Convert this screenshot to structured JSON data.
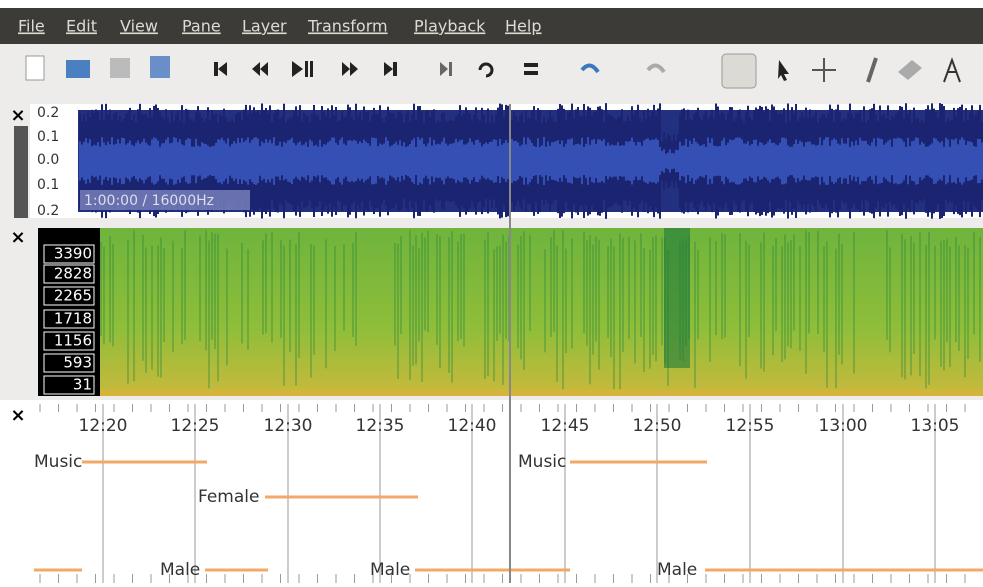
{
  "menu": [
    "File",
    "Edit",
    "View",
    "Pane",
    "Layer",
    "Transform",
    "Playback",
    "Help"
  ],
  "waveform": {
    "scale": [
      "0.2",
      "0.1",
      "0.0",
      "0.1",
      "0.2"
    ],
    "info": "1:00:00 / 16000Hz"
  },
  "spectrogram": {
    "scale": [
      "3390",
      "2828",
      "2265",
      "1718",
      "1156",
      "593",
      "31"
    ]
  },
  "timeline": {
    "ticks": [
      "12:20",
      "12:25",
      "12:30",
      "12:35",
      "12:40",
      "12:45",
      "12:50",
      "12:55",
      "13:00",
      "13:05"
    ],
    "labels": [
      "Music",
      "Female",
      "Male",
      "Music",
      "Male",
      "Male"
    ]
  }
}
